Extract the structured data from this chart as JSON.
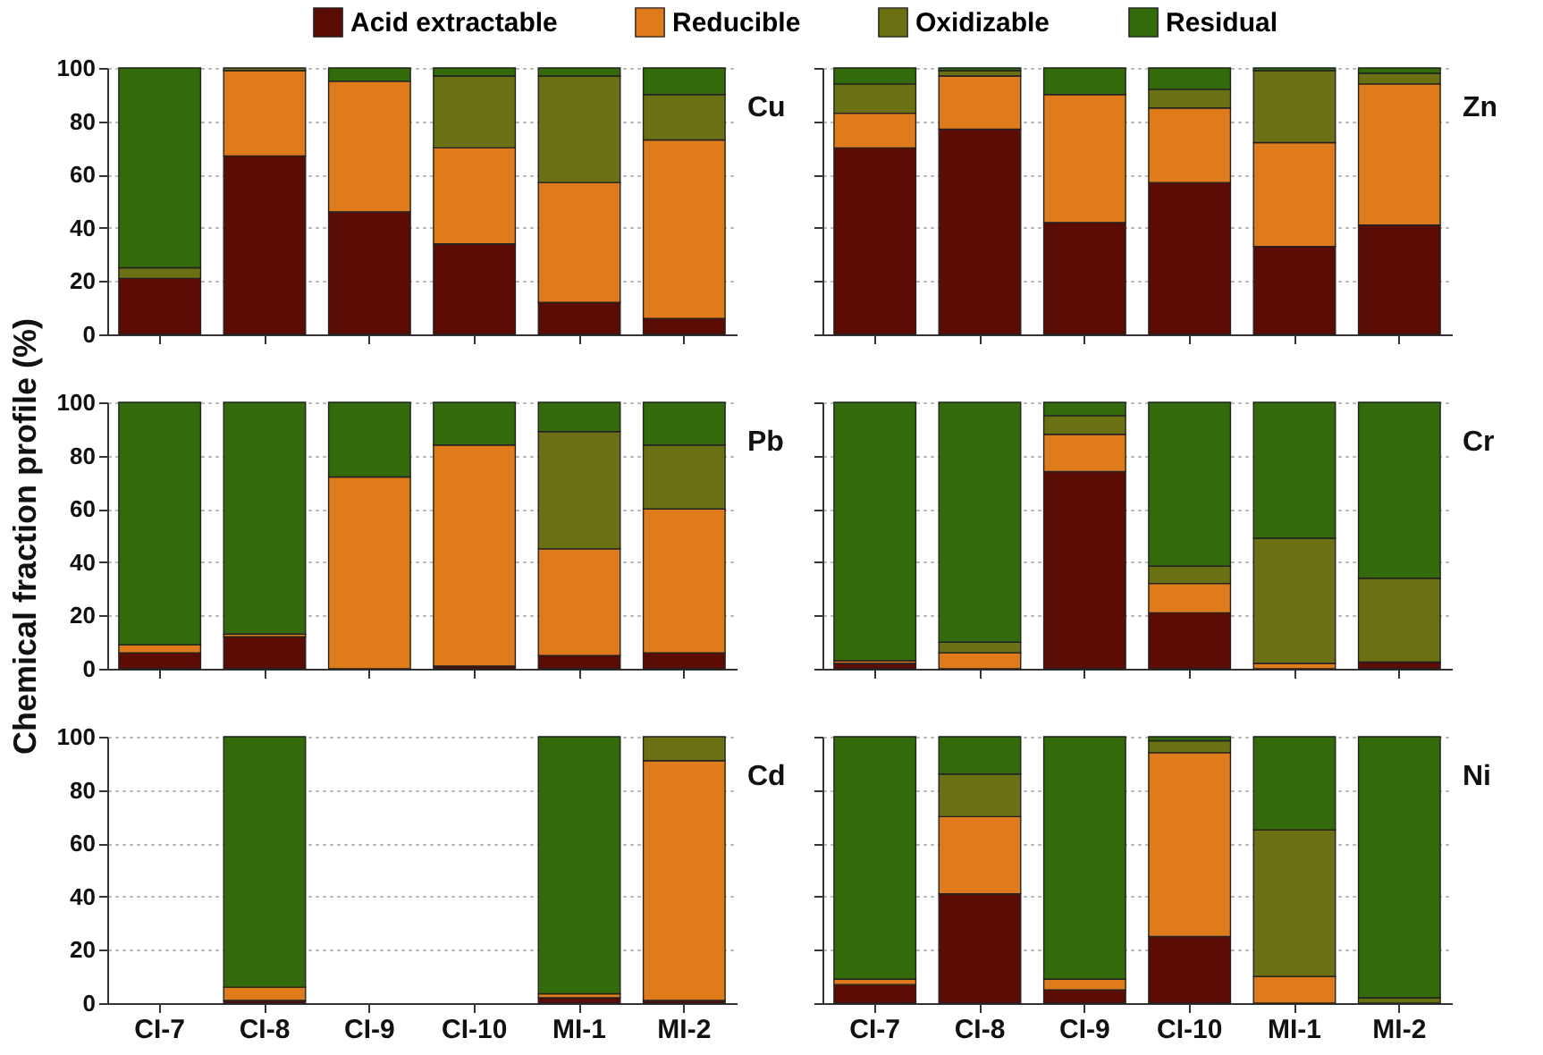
{
  "chart_data": [
    {
      "type": "bar",
      "title": "Cu",
      "stacked": true,
      "categories": [
        "CI-7",
        "CI-8",
        "CI-9",
        "CI-10",
        "MI-1",
        "MI-2"
      ],
      "ylim": [
        0,
        100
      ],
      "yticks": [
        0,
        20,
        40,
        60,
        80,
        100
      ],
      "grid": "y",
      "legend": "top",
      "tick_labels": "y",
      "series": [
        {
          "name": "Acid extractable",
          "color": "#5a0c05",
          "values": [
            21,
            67,
            46,
            34,
            12,
            6
          ]
        },
        {
          "name": "Reducible",
          "color": "#e07b1c",
          "values": [
            0,
            32,
            49,
            36,
            45,
            67
          ]
        },
        {
          "name": "Oxidizable",
          "color": "#6b7113",
          "values": [
            4,
            1,
            0,
            27,
            40,
            17
          ]
        },
        {
          "name": "Residual",
          "color": "#336a0a",
          "values": [
            75,
            0,
            5,
            3,
            3,
            10
          ]
        }
      ]
    },
    {
      "type": "bar",
      "title": "Zn",
      "stacked": true,
      "categories": [
        "CI-7",
        "CI-8",
        "CI-9",
        "CI-10",
        "MI-1",
        "MI-2"
      ],
      "ylim": [
        0,
        100
      ],
      "yticks": [
        0,
        20,
        40,
        60,
        80,
        100
      ],
      "grid": "y",
      "tick_labels": false,
      "series": [
        {
          "name": "Acid extractable",
          "color": "#5a0c05",
          "values": [
            70,
            77,
            42,
            57,
            33,
            41
          ]
        },
        {
          "name": "Reducible",
          "color": "#e07b1c",
          "values": [
            13,
            20,
            48,
            28,
            39,
            53
          ]
        },
        {
          "name": "Oxidizable",
          "color": "#6b7113",
          "values": [
            11,
            2,
            0,
            7,
            27,
            4
          ]
        },
        {
          "name": "Residual",
          "color": "#336a0a",
          "values": [
            6,
            1,
            10,
            8,
            1,
            2
          ]
        }
      ]
    },
    {
      "type": "bar",
      "title": "Pb",
      "ylabel": "Chemical fraction profile (%)",
      "stacked": true,
      "categories": [
        "CI-7",
        "CI-8",
        "CI-9",
        "CI-10",
        "MI-1",
        "MI-2"
      ],
      "ylim": [
        0,
        100
      ],
      "yticks": [
        0,
        20,
        40,
        60,
        80,
        100
      ],
      "grid": "y",
      "tick_labels": "y",
      "series": [
        {
          "name": "Acid extractable",
          "color": "#5a0c05",
          "values": [
            6,
            12,
            0,
            1,
            5,
            6
          ]
        },
        {
          "name": "Reducible",
          "color": "#e07b1c",
          "values": [
            3,
            1,
            72,
            83,
            40,
            54
          ]
        },
        {
          "name": "Oxidizable",
          "color": "#6b7113",
          "values": [
            0,
            0,
            0,
            0,
            44,
            24
          ]
        },
        {
          "name": "Residual",
          "color": "#336a0a",
          "values": [
            91,
            87,
            28,
            16,
            11,
            16
          ]
        }
      ]
    },
    {
      "type": "bar",
      "title": "Cr",
      "stacked": true,
      "categories": [
        "CI-7",
        "CI-8",
        "CI-9",
        "CI-10",
        "MI-1",
        "MI-2"
      ],
      "ylim": [
        0,
        100
      ],
      "yticks": [
        0,
        20,
        40,
        60,
        80,
        100
      ],
      "grid": "y",
      "tick_labels": false,
      "series": [
        {
          "name": "Acid extractable",
          "color": "#5a0c05",
          "values": [
            2,
            0,
            74,
            21,
            0,
            2.5
          ]
        },
        {
          "name": "Reducible",
          "color": "#e07b1c",
          "values": [
            1,
            6,
            14,
            11,
            2,
            0
          ]
        },
        {
          "name": "Oxidizable",
          "color": "#6b7113",
          "values": [
            0,
            4,
            7,
            6.5,
            47,
            31.5
          ]
        },
        {
          "name": "Residual",
          "color": "#336a0a",
          "values": [
            97,
            90,
            5,
            61.5,
            51,
            66
          ]
        }
      ]
    },
    {
      "type": "bar",
      "title": "Cd",
      "stacked": true,
      "categories": [
        "CI-7",
        "CI-8",
        "CI-9",
        "CI-10",
        "MI-1",
        "MI-2"
      ],
      "ylim": [
        0,
        100
      ],
      "yticks": [
        0,
        20,
        40,
        60,
        80,
        100
      ],
      "grid": "y",
      "series": [
        {
          "name": "Acid extractable",
          "color": "#5a0c05",
          "values": [
            0,
            1,
            0,
            0,
            2,
            1
          ]
        },
        {
          "name": "Reducible",
          "color": "#e07b1c",
          "values": [
            0,
            5,
            0,
            0,
            1.5,
            90
          ]
        },
        {
          "name": "Oxidizable",
          "color": "#6b7113",
          "values": [
            0,
            0,
            0,
            0,
            0,
            9
          ]
        },
        {
          "name": "Residual",
          "color": "#336a0a",
          "values": [
            0,
            94,
            0,
            0,
            96.5,
            0
          ]
        }
      ]
    },
    {
      "type": "bar",
      "title": "Ni",
      "stacked": true,
      "categories": [
        "CI-7",
        "CI-8",
        "CI-9",
        "CI-10",
        "MI-1",
        "MI-2"
      ],
      "ylim": [
        0,
        100
      ],
      "yticks": [
        0,
        20,
        40,
        60,
        80,
        100
      ],
      "grid": "y",
      "tick_labels": "x",
      "series": [
        {
          "name": "Acid extractable",
          "color": "#5a0c05",
          "values": [
            7,
            41,
            5,
            25,
            0,
            0
          ]
        },
        {
          "name": "Reducible",
          "color": "#e07b1c",
          "values": [
            2,
            29,
            4,
            69,
            10,
            0
          ]
        },
        {
          "name": "Oxidizable",
          "color": "#6b7113",
          "values": [
            0,
            16,
            0,
            4.5,
            55,
            2
          ]
        },
        {
          "name": "Residual",
          "color": "#336a0a",
          "values": [
            91,
            14,
            91,
            1.5,
            35,
            98
          ]
        }
      ]
    }
  ]
}
